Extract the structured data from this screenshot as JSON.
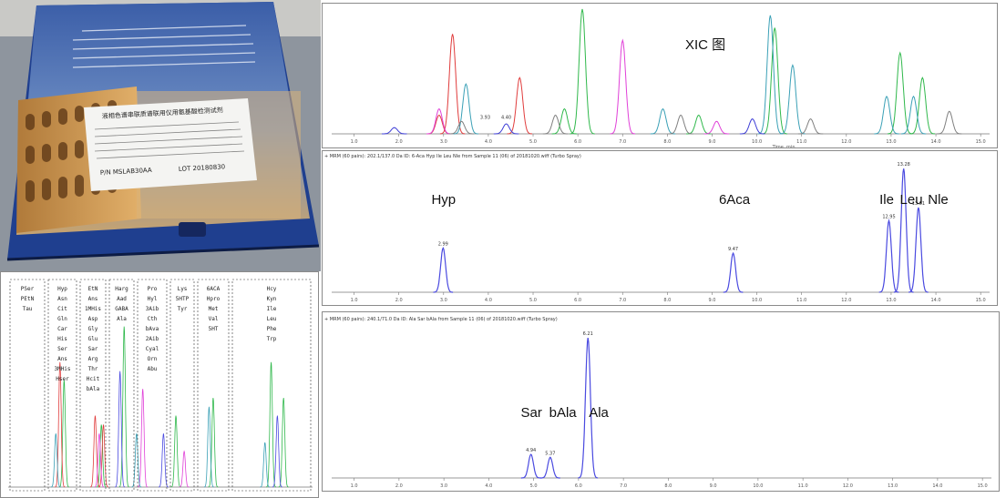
{
  "photo": {
    "box_caption": "",
    "label_title": "液相色谱串联质谱联用仪用氨基酸检测试剂",
    "label_lines": [
      "P/N   MSLAB30AA",
      "LOT   20180830"
    ]
  },
  "chart_data": [
    {
      "id": "xic",
      "type": "line",
      "title": "XIC 图",
      "xlabel": "Time, min",
      "xlim": [
        0.5,
        15.2
      ],
      "ylim": [
        0,
        1
      ],
      "xticks": [
        "1.0",
        "2.0",
        "3.0",
        "4.0",
        "5.0",
        "6.0",
        "7.0",
        "8.0",
        "9.0",
        "10.0",
        "11.0",
        "12.0",
        "13.0",
        "14.0",
        "15.0"
      ],
      "peak_labels": [
        "3.93",
        "4.40"
      ],
      "series": [
        {
          "color": "#e03c3c",
          "peaks": [
            [
              3.2,
              0.8
            ],
            [
              4.7,
              0.45
            ],
            [
              2.9,
              0.15
            ]
          ]
        },
        {
          "color": "#2fb84b",
          "peaks": [
            [
              6.1,
              1.0
            ],
            [
              10.4,
              0.85
            ],
            [
              13.2,
              0.65
            ],
            [
              13.7,
              0.45
            ],
            [
              5.7,
              0.2
            ],
            [
              8.7,
              0.15
            ]
          ]
        },
        {
          "color": "#e040d8",
          "peaks": [
            [
              7.0,
              0.75
            ],
            [
              2.9,
              0.2
            ],
            [
              9.1,
              0.1
            ]
          ]
        },
        {
          "color": "#3aa0b6",
          "peaks": [
            [
              10.3,
              0.95
            ],
            [
              10.8,
              0.55
            ],
            [
              3.5,
              0.4
            ],
            [
              7.9,
              0.2
            ],
            [
              12.9,
              0.3
            ],
            [
              13.5,
              0.3
            ]
          ]
        },
        {
          "color": "#7f7f7f",
          "peaks": [
            [
              14.3,
              0.18
            ],
            [
              3.4,
              0.1
            ],
            [
              5.5,
              0.15
            ],
            [
              8.3,
              0.15
            ],
            [
              11.2,
              0.12
            ]
          ]
        },
        {
          "color": "#3c3cd6",
          "peaks": [
            [
              9.9,
              0.12
            ],
            [
              1.9,
              0.05
            ],
            [
              4.4,
              0.08
            ]
          ]
        }
      ]
    },
    {
      "id": "panel2",
      "type": "line",
      "title": "+ MRM (60 pairs): 202.1/137.0 Da ID: 6-Aca Hyp Ile Leu Nle from Sample 11 (06) of 20181020.wiff (Turbo Spray)",
      "xlim": [
        0.5,
        15.2
      ],
      "ylim": [
        0,
        1
      ],
      "xticks": [
        "1.0",
        "2.0",
        "3.0",
        "4.0",
        "5.0",
        "6.0",
        "7.0",
        "8.0",
        "9.0",
        "10.0",
        "11.0",
        "12.0",
        "13.0",
        "14.0",
        "15.0"
      ],
      "annotations": [
        "Hyp",
        "6Aca",
        "Ile",
        "Leu",
        "Nle"
      ],
      "series": [
        {
          "color": "#4a4ae0",
          "peaks": [
            {
              "rt": 2.99,
              "height": 0.34,
              "label": "2.99"
            },
            {
              "rt": 9.47,
              "height": 0.3,
              "label": "9.47"
            },
            {
              "rt": 12.95,
              "height": 0.55,
              "label": "12.95"
            },
            {
              "rt": 13.28,
              "height": 0.95,
              "label": "13.28"
            },
            {
              "rt": 13.61,
              "height": 0.65,
              "label": "13.61"
            }
          ]
        }
      ]
    },
    {
      "id": "panel3",
      "type": "line",
      "title": "+ MRM (60 pairs): 240.1/71.0 Da ID: Ala Sar bAla from Sample 11 (06) of 20181020.wiff (Turbo Spray)",
      "xlim": [
        0.5,
        15.2
      ],
      "ylim": [
        0,
        1
      ],
      "xticks": [
        "1.0",
        "2.0",
        "3.0",
        "4.0",
        "5.0",
        "6.0",
        "7.0",
        "8.0",
        "9.0",
        "10.0",
        "11.0",
        "12.0",
        "13.0",
        "14.0",
        "15.0"
      ],
      "annotations": [
        "Sar",
        "bAla",
        "Ala"
      ],
      "series": [
        {
          "color": "#4a4ae0",
          "peaks": [
            {
              "rt": 4.94,
              "height": 0.16,
              "label": "4.94"
            },
            {
              "rt": 5.37,
              "height": 0.14,
              "label": "5.37"
            },
            {
              "rt": 6.21,
              "height": 0.95,
              "label": "6.21"
            }
          ]
        }
      ]
    },
    {
      "id": "bottomleft",
      "type": "line",
      "groups": [
        [
          "PSer",
          "PEtN",
          "Tau"
        ],
        [
          "Hyp",
          "Asn",
          "Cit",
          "Gln",
          "Car",
          "His",
          "Ser",
          "Ans",
          "3MHis",
          "Hser"
        ],
        [
          "EtN",
          "Ans",
          "1MHis",
          "Asp",
          "Gly",
          "Glu",
          "Sar",
          "Arg",
          "Thr",
          "Hcit",
          "bAla"
        ],
        [
          "Harg",
          "Aad",
          "GABA",
          "Ala"
        ],
        [
          "Pro",
          "Hyl",
          "3Aib",
          "Cth",
          "bAva",
          "2Aib",
          "Cyal",
          "Orn",
          "Abu"
        ],
        [
          "Lys",
          "5HTP",
          "Tyr"
        ],
        [
          "6ACA",
          "Hpro",
          "Met",
          "Val",
          "5HT"
        ],
        [
          "Hcy",
          "Kyn",
          "Ile",
          "Leu",
          "Phe",
          "Trp"
        ]
      ],
      "series": [
        {
          "color": "#2fb84b",
          "peaks": [
            [
              3.2,
              0.6
            ],
            [
              6.1,
              0.9
            ],
            [
              10.4,
              0.5
            ],
            [
              13.2,
              0.7
            ],
            [
              13.8,
              0.5
            ],
            [
              8.6,
              0.4
            ],
            [
              5.0,
              0.35
            ]
          ]
        },
        {
          "color": "#e03c3c",
          "peaks": [
            [
              3.0,
              0.7
            ],
            [
              4.7,
              0.4
            ],
            [
              5.1,
              0.35
            ]
          ]
        },
        {
          "color": "#e040d8",
          "peaks": [
            [
              7.0,
              0.55
            ],
            [
              9.0,
              0.2
            ],
            [
              4.9,
              0.3
            ]
          ]
        },
        {
          "color": "#3aa0b6",
          "peaks": [
            [
              10.2,
              0.45
            ],
            [
              12.9,
              0.25
            ],
            [
              2.8,
              0.3
            ],
            [
              6.7,
              0.3
            ]
          ]
        },
        {
          "color": "#4a4ae0",
          "peaks": [
            [
              5.9,
              0.65
            ],
            [
              13.5,
              0.4
            ],
            [
              8.0,
              0.3
            ]
          ]
        }
      ]
    }
  ]
}
